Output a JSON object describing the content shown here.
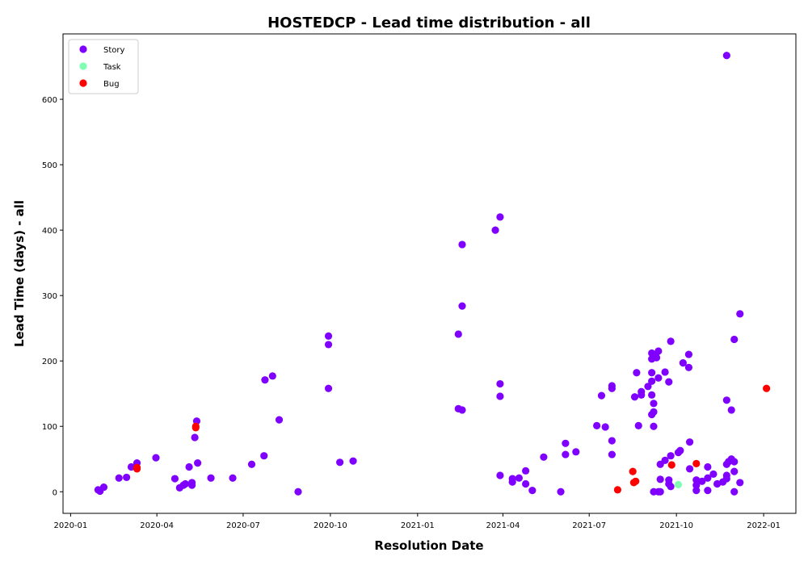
{
  "chart_data": {
    "type": "scatter",
    "title": "HOSTEDCP - Lead time distribution - all",
    "xlabel": "Resolution Date",
    "ylabel": "Lead Time (days) - all",
    "xlim": [
      "2019-12-24",
      "2022-02-04"
    ],
    "ylim": [
      -33,
      700
    ],
    "x_ticks": [
      "2020-01",
      "2020-04",
      "2020-07",
      "2020-10",
      "2021-01",
      "2021-04",
      "2021-07",
      "2021-10",
      "2022-01"
    ],
    "y_ticks": [
      0,
      100,
      200,
      300,
      400,
      500,
      600
    ],
    "legend_position": "top-left",
    "series": [
      {
        "name": "Story",
        "color": "#8000ff",
        "points": [
          [
            "2020-01-30",
            3
          ],
          [
            "2020-02-01",
            1
          ],
          [
            "2020-02-05",
            7
          ],
          [
            "2020-02-21",
            21
          ],
          [
            "2020-02-29",
            22
          ],
          [
            "2020-03-05",
            38
          ],
          [
            "2020-03-11",
            44
          ],
          [
            "2020-03-31",
            52
          ],
          [
            "2020-04-20",
            20
          ],
          [
            "2020-04-25",
            6
          ],
          [
            "2020-04-29",
            10
          ],
          [
            "2020-05-01",
            12
          ],
          [
            "2020-05-05",
            38
          ],
          [
            "2020-05-08",
            14
          ],
          [
            "2020-05-08",
            10
          ],
          [
            "2020-05-11",
            83
          ],
          [
            "2020-05-13",
            108
          ],
          [
            "2020-05-14",
            44
          ],
          [
            "2020-05-28",
            21
          ],
          [
            "2020-06-20",
            21
          ],
          [
            "2020-07-10",
            42
          ],
          [
            "2020-07-23",
            55
          ],
          [
            "2020-07-24",
            171
          ],
          [
            "2020-08-01",
            177
          ],
          [
            "2020-08-08",
            110
          ],
          [
            "2020-08-28",
            0
          ],
          [
            "2020-09-29",
            238
          ],
          [
            "2020-09-29",
            225
          ],
          [
            "2020-09-29",
            158
          ],
          [
            "2020-10-11",
            45
          ],
          [
            "2020-10-25",
            47
          ],
          [
            "2021-02-13",
            241
          ],
          [
            "2021-02-13",
            127
          ],
          [
            "2021-02-17",
            125
          ],
          [
            "2021-02-17",
            378
          ],
          [
            "2021-02-17",
            284
          ],
          [
            "2021-03-24",
            400
          ],
          [
            "2021-03-29",
            420
          ],
          [
            "2021-03-29",
            165
          ],
          [
            "2021-03-29",
            146
          ],
          [
            "2021-03-29",
            25
          ],
          [
            "2021-04-11",
            15
          ],
          [
            "2021-04-11",
            20
          ],
          [
            "2021-04-18",
            21
          ],
          [
            "2021-04-25",
            32
          ],
          [
            "2021-04-25",
            12
          ],
          [
            "2021-05-02",
            2
          ],
          [
            "2021-05-14",
            53
          ],
          [
            "2021-06-01",
            0
          ],
          [
            "2021-06-06",
            74
          ],
          [
            "2021-06-06",
            57
          ],
          [
            "2021-06-17",
            61
          ],
          [
            "2021-07-09",
            101
          ],
          [
            "2021-07-14",
            147
          ],
          [
            "2021-07-18",
            99
          ],
          [
            "2021-07-25",
            162
          ],
          [
            "2021-07-25",
            158
          ],
          [
            "2021-07-25",
            78
          ],
          [
            "2021-07-25",
            57
          ],
          [
            "2021-08-18",
            145
          ],
          [
            "2021-08-20",
            182
          ],
          [
            "2021-08-22",
            101
          ],
          [
            "2021-08-25",
            153
          ],
          [
            "2021-08-25",
            148
          ],
          [
            "2021-09-01",
            161
          ],
          [
            "2021-09-05",
            212
          ],
          [
            "2021-09-05",
            203
          ],
          [
            "2021-09-05",
            182
          ],
          [
            "2021-09-05",
            169
          ],
          [
            "2021-09-05",
            148
          ],
          [
            "2021-09-05",
            118
          ],
          [
            "2021-09-07",
            135
          ],
          [
            "2021-09-07",
            122
          ],
          [
            "2021-09-07",
            100
          ],
          [
            "2021-09-07",
            0
          ],
          [
            "2021-09-09",
            210
          ],
          [
            "2021-09-10",
            205
          ],
          [
            "2021-09-12",
            215
          ],
          [
            "2021-09-12",
            174
          ],
          [
            "2021-09-12",
            0
          ],
          [
            "2021-09-14",
            42
          ],
          [
            "2021-09-14",
            19
          ],
          [
            "2021-09-14",
            0
          ],
          [
            "2021-09-19",
            183
          ],
          [
            "2021-09-19",
            48
          ],
          [
            "2021-09-23",
            168
          ],
          [
            "2021-09-23",
            18
          ],
          [
            "2021-09-23",
            12
          ],
          [
            "2021-09-25",
            230
          ],
          [
            "2021-09-25",
            55
          ],
          [
            "2021-09-25",
            8
          ],
          [
            "2021-10-03",
            60
          ],
          [
            "2021-10-05",
            63
          ],
          [
            "2021-10-08",
            197
          ],
          [
            "2021-10-14",
            210
          ],
          [
            "2021-10-14",
            190
          ],
          [
            "2021-10-15",
            76
          ],
          [
            "2021-10-15",
            35
          ],
          [
            "2021-10-22",
            18
          ],
          [
            "2021-10-22",
            10
          ],
          [
            "2021-10-22",
            2
          ],
          [
            "2021-10-28",
            16
          ],
          [
            "2021-11-03",
            38
          ],
          [
            "2021-11-03",
            21
          ],
          [
            "2021-11-03",
            2
          ],
          [
            "2021-11-09",
            27
          ],
          [
            "2021-11-13",
            12
          ],
          [
            "2021-11-19",
            15
          ],
          [
            "2021-11-23",
            667
          ],
          [
            "2021-11-23",
            140
          ],
          [
            "2021-11-23",
            42
          ],
          [
            "2021-11-23",
            25
          ],
          [
            "2021-11-23",
            20
          ],
          [
            "2021-11-25",
            46
          ],
          [
            "2021-11-28",
            125
          ],
          [
            "2021-11-28",
            50
          ],
          [
            "2021-12-01",
            233
          ],
          [
            "2021-12-01",
            46
          ],
          [
            "2021-12-01",
            31
          ],
          [
            "2021-12-01",
            0
          ],
          [
            "2021-12-07",
            272
          ],
          [
            "2021-12-07",
            14
          ]
        ]
      },
      {
        "name": "Task",
        "color": "#80ffb4",
        "points": [
          [
            "2021-10-03",
            11
          ]
        ]
      },
      {
        "name": "Bug",
        "color": "#ff0000",
        "points": [
          [
            "2020-03-11",
            35
          ],
          [
            "2020-03-11",
            37
          ],
          [
            "2020-05-12",
            100
          ],
          [
            "2020-05-12",
            98
          ],
          [
            "2021-07-31",
            3
          ],
          [
            "2021-08-16",
            31
          ],
          [
            "2021-08-17",
            14
          ],
          [
            "2021-08-19",
            16
          ],
          [
            "2021-09-26",
            41
          ],
          [
            "2021-10-22",
            43
          ],
          [
            "2022-01-04",
            158
          ]
        ]
      }
    ]
  }
}
